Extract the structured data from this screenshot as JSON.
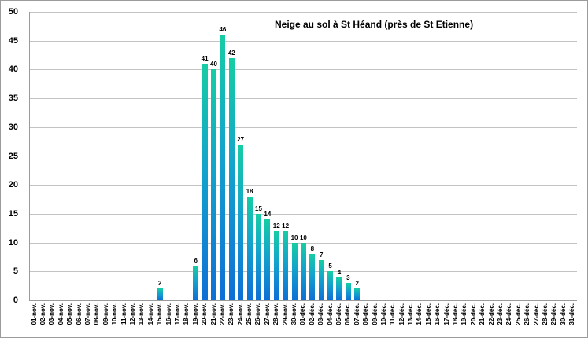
{
  "chart_data": {
    "type": "bar",
    "title": "Neige au sol à St Héand (près de St Etienne)",
    "categories": [
      "01-nov.",
      "02-nov.",
      "03-nov.",
      "04-nov.",
      "05-nov.",
      "06-nov.",
      "07-nov.",
      "08-nov.",
      "09-nov.",
      "10-nov.",
      "11-nov.",
      "12-nov.",
      "13-nov.",
      "14-nov.",
      "15-nov.",
      "16-nov.",
      "17-nov.",
      "18-nov.",
      "19-nov.",
      "20-nov.",
      "21-nov.",
      "22-nov.",
      "23-nov.",
      "24-nov.",
      "25-nov.",
      "26-nov.",
      "27-nov.",
      "28-nov.",
      "29-nov.",
      "30-nov.",
      "01-déc.",
      "02-déc.",
      "03-déc.",
      "04-déc.",
      "05-déc.",
      "06-déc.",
      "07-déc.",
      "08-déc.",
      "09-déc.",
      "10-déc.",
      "11-déc.",
      "12-déc.",
      "13-déc.",
      "14-déc.",
      "15-déc.",
      "16-déc.",
      "17-déc.",
      "18-déc.",
      "19-déc.",
      "20-déc.",
      "21-déc.",
      "22-déc.",
      "23-déc.",
      "24-déc.",
      "25-déc.",
      "26-déc.",
      "27-déc.",
      "28-déc.",
      "29-déc.",
      "30-déc.",
      "31-déc."
    ],
    "values": [
      0,
      0,
      0,
      0,
      0,
      0,
      0,
      0,
      0,
      0,
      0,
      0,
      0,
      0,
      2,
      0,
      0,
      0,
      6,
      41,
      40,
      46,
      42,
      27,
      18,
      15,
      14,
      12,
      12,
      10,
      10,
      8,
      7,
      5,
      4,
      3,
      2,
      0,
      0,
      0,
      0,
      0,
      0,
      0,
      0,
      0,
      0,
      0,
      0,
      0,
      0,
      0,
      0,
      0,
      0,
      0,
      0,
      0,
      0,
      0,
      0
    ],
    "xlabel": "",
    "ylabel": "",
    "ylim": [
      0,
      50
    ],
    "yticks": [
      0,
      5,
      10,
      15,
      20,
      25,
      30,
      35,
      40,
      45,
      50
    ],
    "grid": true,
    "legend_position": "none",
    "data_labels_shown": true,
    "colors": {
      "bar_gradient_top": "#16cda4",
      "bar_gradient_mid": "#13a3cc",
      "bar_gradient_bottom": "#0e6fd6",
      "gridline": "#c3c3c3",
      "axis_line": "#9b9b9b",
      "text": "#000000",
      "background": "#ffffff"
    }
  }
}
